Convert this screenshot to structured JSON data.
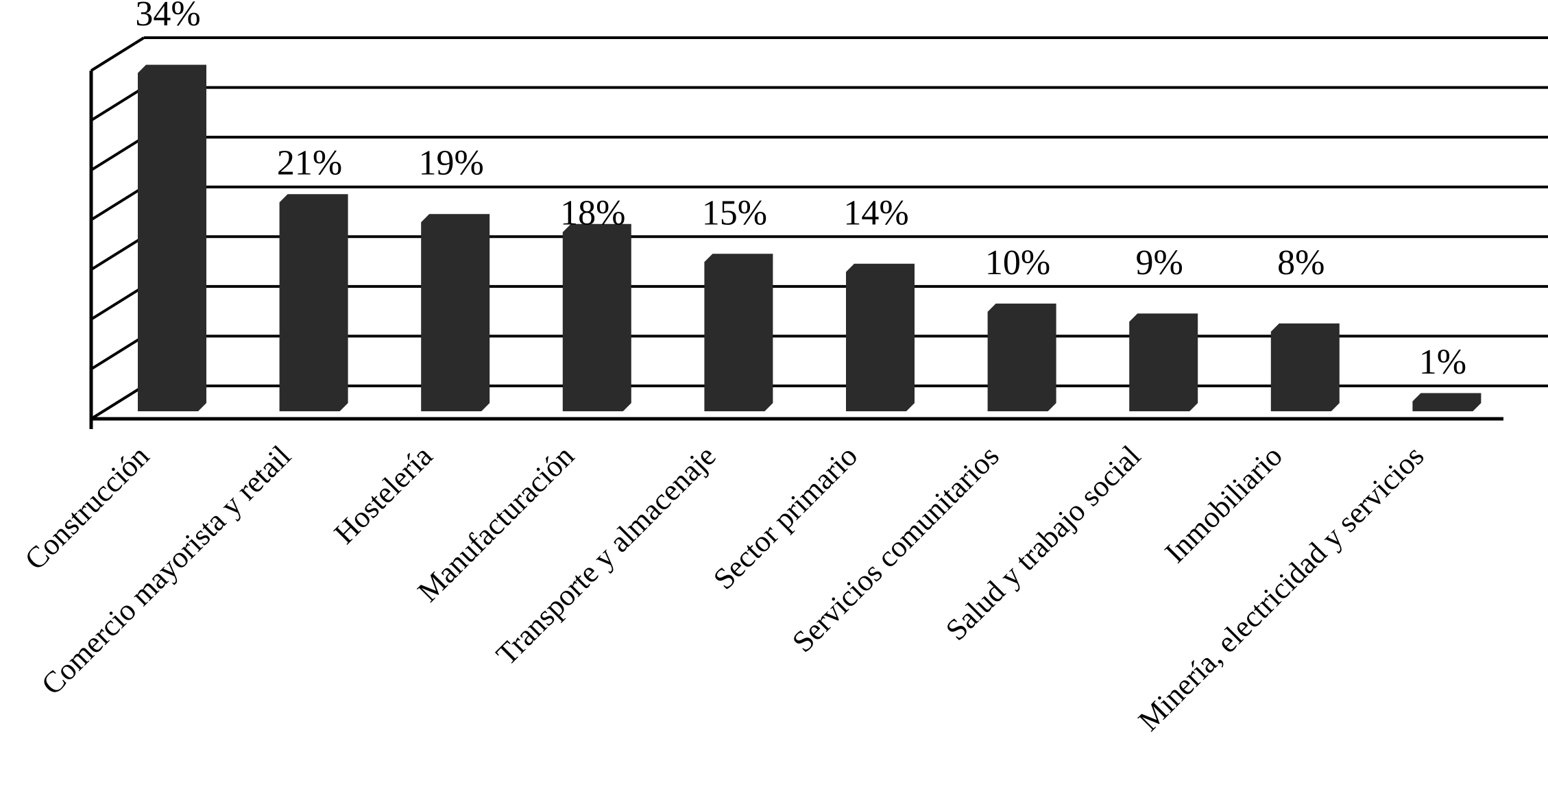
{
  "chart_data": {
    "type": "bar",
    "style": "3d-column-monochrome",
    "title": "",
    "xlabel": "",
    "ylabel": "",
    "categories": [
      "Construcción",
      "Comercio mayorista y retail",
      "Hostelería",
      "Manufacturación",
      "Transporte y almacenaje",
      "Sector primario",
      "Servicios comunitarios",
      "Salud y trabajo social",
      "Inmobiliario",
      "Minería, electricidad y servicios"
    ],
    "values": [
      34,
      21,
      19,
      18,
      15,
      14,
      10,
      9,
      8,
      1
    ],
    "data_labels": [
      "34%",
      "21%",
      "19%",
      "18%",
      "15%",
      "14%",
      "10%",
      "9%",
      "8%",
      "1%"
    ],
    "ylim": [
      0,
      35
    ],
    "gridline_step_percent": 5,
    "grid": true,
    "legend": false,
    "colors": {
      "bar": "#2b2b2b",
      "lines": "#000000",
      "text": "#000000",
      "background": "#ffffff"
    }
  }
}
